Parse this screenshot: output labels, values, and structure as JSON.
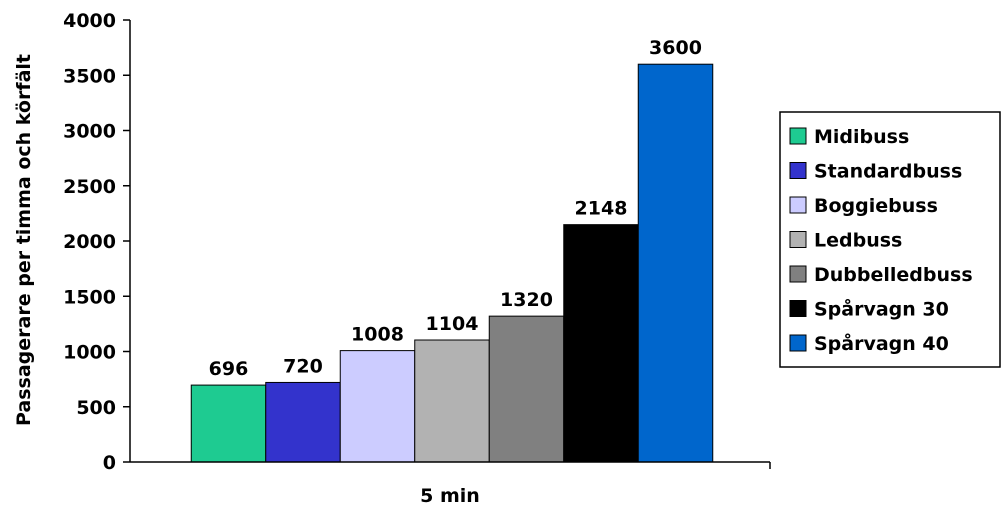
{
  "chart_data": {
    "type": "bar",
    "categories": [
      "5 min"
    ],
    "xlabel": "5 min",
    "ylabel": "Passagerare per timma och körfält",
    "ylim": [
      0,
      4000
    ],
    "yticks": [
      0,
      500,
      1000,
      1500,
      2000,
      2500,
      3000,
      3500,
      4000
    ],
    "grid": false,
    "legend_position": "right",
    "series": [
      {
        "name": "Midibuss",
        "values": [
          696
        ],
        "color": "#1ECB91"
      },
      {
        "name": "Standardbuss",
        "values": [
          720
        ],
        "color": "#3333CC"
      },
      {
        "name": "Boggiebuss",
        "values": [
          1008
        ],
        "color": "#CCCCFF"
      },
      {
        "name": "Ledbuss",
        "values": [
          1104
        ],
        "color": "#B2B2B2"
      },
      {
        "name": "Dubbelledbuss",
        "values": [
          1320
        ],
        "color": "#808080"
      },
      {
        "name": "Spårvagn 30",
        "values": [
          2148
        ],
        "color": "#000000"
      },
      {
        "name": "Spårvagn 40",
        "values": [
          3600
        ],
        "color": "#0066CC"
      }
    ]
  }
}
